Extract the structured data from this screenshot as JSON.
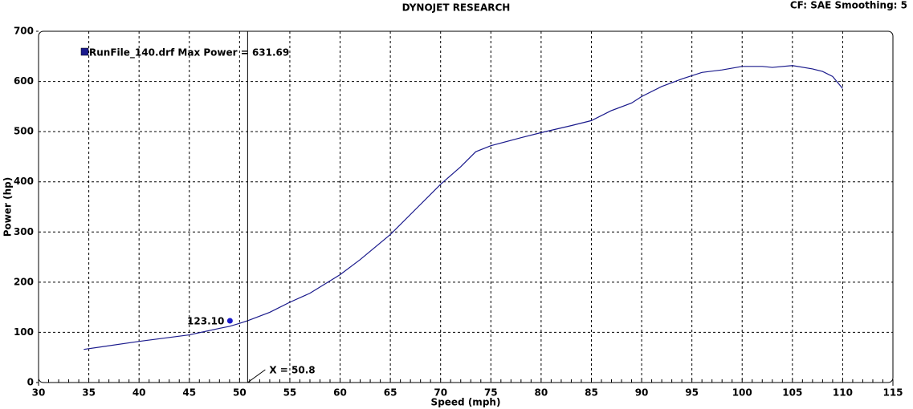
{
  "chart_data": {
    "type": "line",
    "title": "DYNOJET RESEARCH",
    "subtitle": "CF: SAE  Smoothing: 5",
    "x_label": "Speed (mph)",
    "y_label": "Power (hp)",
    "xlim": [
      30,
      115
    ],
    "ylim": [
      0,
      700
    ],
    "xticks": [
      30,
      35,
      40,
      45,
      50,
      55,
      60,
      65,
      70,
      75,
      80,
      85,
      90,
      95,
      100,
      105,
      110,
      115
    ],
    "yticks": [
      0,
      100,
      200,
      300,
      400,
      500,
      600,
      700
    ],
    "grid": true,
    "x": [
      34.5,
      40,
      45,
      48,
      49,
      50,
      50.8,
      53,
      55,
      57,
      60,
      62,
      65,
      68,
      70,
      72,
      73.5,
      75,
      78,
      80,
      83,
      85,
      87,
      89,
      90,
      92,
      94,
      96,
      98,
      100,
      102,
      103,
      105,
      107,
      108,
      109,
      110
    ],
    "series": [
      {
        "name": "RunFile_140.drf Max Power = 631.69",
        "color": "#1a1a8c",
        "values": [
          66,
          82,
          95,
          108,
          112,
          118,
          123.1,
          140,
          160,
          178,
          215,
          245,
          295,
          355,
          395,
          430,
          460,
          472,
          488,
          498,
          512,
          522,
          542,
          557,
          570,
          590,
          605,
          618,
          623,
          630,
          630,
          628,
          631.69,
          625,
          620,
          610,
          586
        ]
      }
    ],
    "cursor": {
      "x": 50.8,
      "label": "X = 50.8",
      "value": 123.1,
      "value_label": "123.10"
    }
  }
}
